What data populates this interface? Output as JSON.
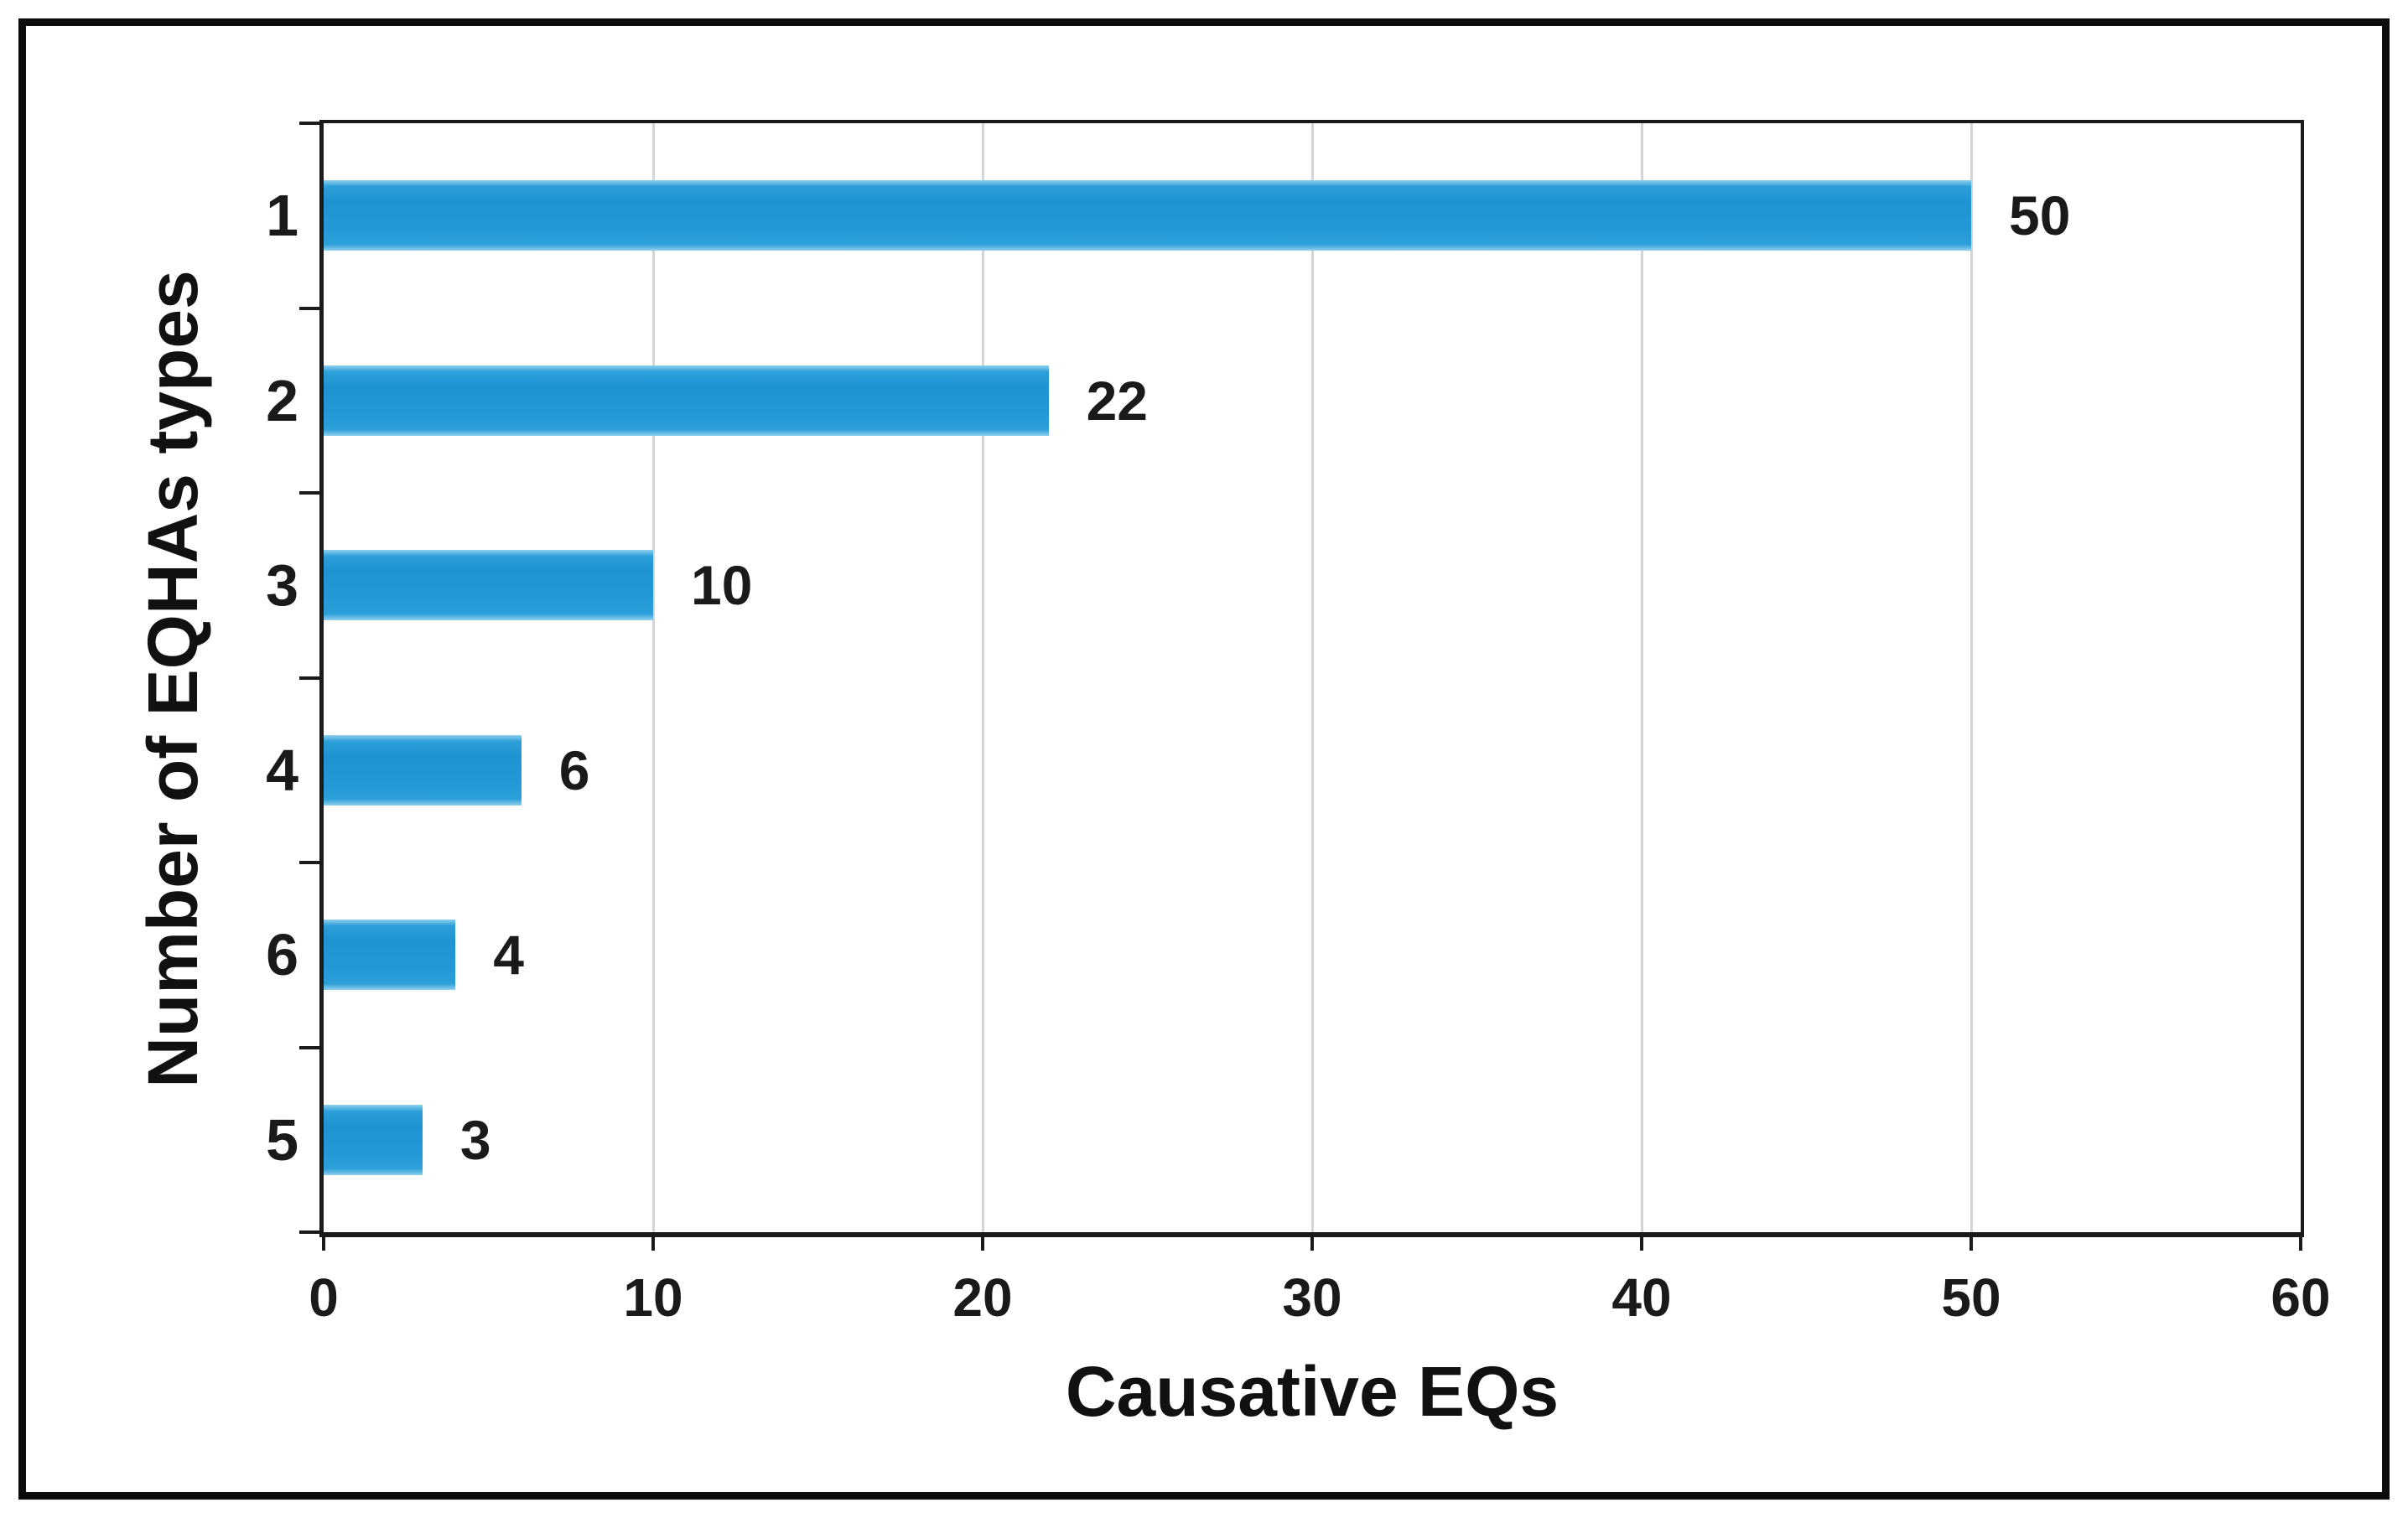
{
  "chart_data": {
    "type": "bar",
    "orientation": "horizontal",
    "title": "",
    "categories": [
      "1",
      "2",
      "3",
      "4",
      "6",
      "5"
    ],
    "values": [
      50,
      22,
      10,
      6,
      4,
      3
    ],
    "data_labels": [
      "50",
      "22",
      "10",
      "6",
      "4",
      "3"
    ],
    "xlabel": "Causative EQs",
    "ylabel": "Number of EQHAs types",
    "xlim": [
      0,
      60
    ],
    "x_ticks": [
      0,
      10,
      20,
      30,
      40,
      50,
      60
    ],
    "grid": true,
    "legend": "none",
    "bar_color": "#2196d5",
    "gridline_color": "#d4d4d4",
    "axis_color": "#1a1a1a",
    "frame_color": "#0c0c0c"
  }
}
